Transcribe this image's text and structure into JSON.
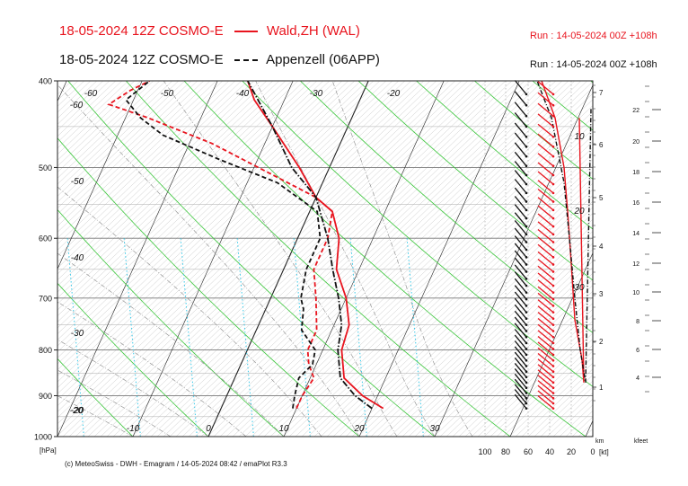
{
  "header": {
    "line1": {
      "title": "18-05-2024 12Z COSMO-E",
      "station": "Wald,ZH (WAL)",
      "run": "Run : 14-05-2024 00Z +108h",
      "color": "#e8141e"
    },
    "line2": {
      "title": "18-05-2024 12Z COSMO-E",
      "station": "Appenzell (06APP)",
      "run": "Run : 14-05-2024 00Z +108h",
      "color": "#111111"
    }
  },
  "footer": {
    "copyright": "(c) MeteoSwiss - DWH - Emagram / 14-05-2024  08:42 / emaPlot R3.3",
    "unit_hpa": "[hPa]",
    "unit_km": "km",
    "unit_kfeet": "kfeet",
    "unit_kt": "[kt]"
  },
  "chart_data": {
    "type": "line",
    "title": "18-05-2024 12Z COSMO-E",
    "pressure_ticks": [
      400,
      500,
      600,
      700,
      800,
      900,
      1000
    ],
    "pressure_tick_labels": [
      "400",
      "500",
      "600",
      "700",
      "800",
      "900",
      "1000"
    ],
    "ylim": [
      1000,
      400
    ],
    "temperature_labels_bottom": [
      "-20",
      "-10",
      "0",
      "10",
      "20",
      "30"
    ],
    "temperature_labels_diagonal": [
      "-60",
      "-60",
      "-50",
      "-40",
      "-30",
      "-20",
      "-50",
      "-40",
      "-30",
      "-20",
      "10",
      "20",
      "30"
    ],
    "wind_speed_ticks": [
      "100",
      "80",
      "60",
      "40",
      "20",
      "0"
    ],
    "km_ticks": [
      "1",
      "2",
      "3",
      "4",
      "5",
      "6",
      "7"
    ],
    "kfeet_ticks": [
      "4",
      "6",
      "8",
      "10",
      "12",
      "14",
      "16",
      "18",
      "20",
      "22"
    ],
    "series": [
      {
        "name": "Wald,ZH (WAL)",
        "color": "#e8141e",
        "style": "solid",
        "temperature": [
          [
            930,
            21.5
          ],
          [
            900,
            18
          ],
          [
            860,
            14.5
          ],
          [
            800,
            12.5
          ],
          [
            750,
            12
          ],
          [
            700,
            10
          ],
          [
            650,
            7
          ],
          [
            600,
            5.5
          ],
          [
            560,
            3
          ],
          [
            540,
            0
          ],
          [
            500,
            -4
          ],
          [
            450,
            -10
          ],
          [
            420,
            -14
          ],
          [
            400,
            -16
          ]
        ],
        "dewpoint": [
          [
            930,
            10
          ],
          [
            900,
            10
          ],
          [
            860,
            10.5
          ],
          [
            830,
            9
          ],
          [
            800,
            8
          ],
          [
            760,
            8
          ],
          [
            700,
            6
          ],
          [
            650,
            4
          ],
          [
            600,
            4
          ],
          [
            560,
            3
          ],
          [
            540,
            0
          ],
          [
            510,
            -7
          ],
          [
            470,
            -17
          ],
          [
            440,
            -27
          ],
          [
            425,
            -33
          ],
          [
            410,
            -31
          ],
          [
            400,
            -29
          ]
        ]
      },
      {
        "name": "Appenzell (06APP)",
        "color": "#111111",
        "style": "dashdot",
        "temperature": [
          [
            930,
            20
          ],
          [
            900,
            17
          ],
          [
            860,
            14
          ],
          [
            800,
            12
          ],
          [
            750,
            11
          ],
          [
            700,
            9
          ],
          [
            650,
            6.5
          ],
          [
            600,
            4
          ],
          [
            540,
            0
          ],
          [
            500,
            -5
          ],
          [
            450,
            -10
          ],
          [
            400,
            -16
          ]
        ],
        "dewpoint": [
          [
            930,
            9.5
          ],
          [
            900,
            9
          ],
          [
            860,
            8.5
          ],
          [
            830,
            9.5
          ],
          [
            800,
            9
          ],
          [
            760,
            6
          ],
          [
            720,
            5
          ],
          [
            700,
            4
          ],
          [
            650,
            3
          ],
          [
            600,
            3
          ],
          [
            560,
            1
          ],
          [
            520,
            -6
          ],
          [
            490,
            -15
          ],
          [
            460,
            -24
          ],
          [
            440,
            -28
          ],
          [
            420,
            -31
          ],
          [
            400,
            -29
          ]
        ]
      }
    ],
    "legend": "top",
    "grid": true
  }
}
